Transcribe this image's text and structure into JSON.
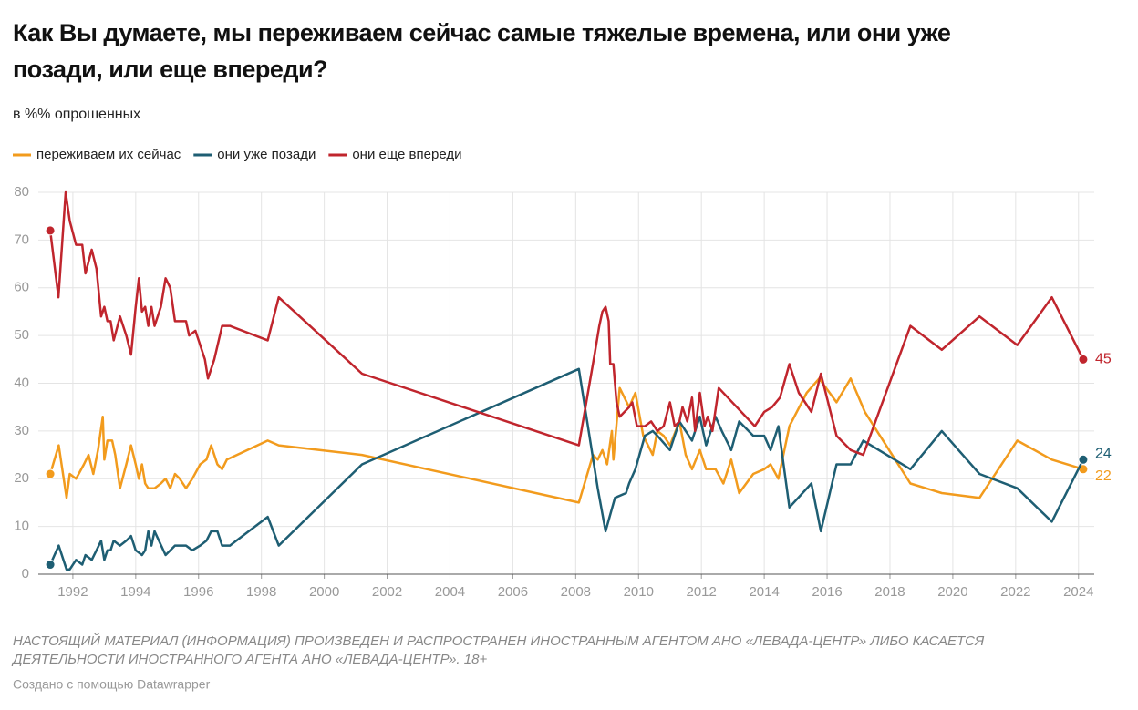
{
  "chart_data": {
    "type": "line",
    "title": "Как Вы думаете, мы переживаем сейчас самые тяжелые времена, или они уже позади, или еще впереди?",
    "subtitle": "в %% опрошенных",
    "note": "НАСТОЯЩИЙ МАТЕРИАЛ (ИНФОРМАЦИЯ) ПРОИЗВЕДЕН И РАСПРОСТРАНЕН ИНОСТРАННЫМ АГЕНТОМ АНО «ЛЕВАДА-ЦЕНТР» ЛИБО КАСАЕТСЯ ДЕЯТЕЛЬНОСТИ ИНОСТРАННОГО АГЕНТА АНО «ЛЕВАДА-ЦЕНТР». 18+",
    "credit": "Создано с помощью Datawrapper",
    "xlim": [
      1990.9,
      2024.5
    ],
    "xticks": [
      1992,
      1994,
      1996,
      1998,
      2000,
      2002,
      2004,
      2006,
      2008,
      2010,
      2012,
      2014,
      2016,
      2018,
      2020,
      2022,
      2024
    ],
    "ylim": [
      0,
      80
    ],
    "yticks": [
      0,
      10,
      20,
      30,
      40,
      50,
      60,
      70,
      80
    ],
    "grid": true,
    "series": [
      {
        "name": "переживаем их сейчас",
        "color": "#f29b1d",
        "x": [
          1991.28,
          1991.55,
          1991.8,
          1991.9,
          1992.1,
          1992.35,
          1992.5,
          1992.65,
          1992.8,
          1992.95,
          1993.0,
          1993.1,
          1993.25,
          1993.35,
          1993.5,
          1993.7,
          1993.85,
          1994.0,
          1994.1,
          1994.2,
          1994.3,
          1994.4,
          1994.6,
          1994.8,
          1994.95,
          1995.1,
          1995.25,
          1995.4,
          1995.6,
          1995.8,
          1996.05,
          1996.25,
          1996.4,
          1996.6,
          1996.75,
          1996.9,
          1998.2,
          1998.55,
          2001.2,
          2008.1,
          2008.55,
          2008.7,
          2008.85,
          2009.0,
          2009.15,
          2009.2,
          2009.4,
          2009.7,
          2009.9,
          2010.15,
          2010.45,
          2010.6,
          2010.8,
          2011.0,
          2011.3,
          2011.5,
          2011.7,
          2011.95,
          2012.15,
          2012.45,
          2012.7,
          2012.95,
          2013.2,
          2013.65,
          2014.0,
          2014.2,
          2014.45,
          2014.8,
          2015.35,
          2015.75,
          2016.3,
          2016.75,
          2017.2,
          2018.65,
          2019.65,
          2020.85,
          2022.05,
          2023.15,
          2024.15
        ],
        "values": [
          21,
          27,
          16,
          21,
          20,
          23,
          25,
          21,
          26,
          33,
          24,
          28,
          28,
          25,
          18,
          23,
          27,
          23,
          20,
          23,
          19,
          18,
          18,
          19,
          20,
          18,
          21,
          20,
          18,
          20,
          23,
          24,
          27,
          23,
          22,
          24,
          28,
          27,
          25,
          15,
          25,
          24,
          26,
          23,
          30,
          24,
          39,
          35,
          38,
          29,
          25,
          30,
          29,
          27,
          32,
          25,
          22,
          26,
          22,
          22,
          19,
          24,
          17,
          21,
          22,
          23,
          20,
          31,
          38,
          41,
          36,
          41,
          34,
          19,
          17,
          16,
          28,
          24,
          22
        ]
      },
      {
        "name": "они уже позади",
        "color": "#1e5e73",
        "x": [
          1991.28,
          1991.55,
          1991.8,
          1991.9,
          1992.1,
          1992.3,
          1992.4,
          1992.6,
          1992.75,
          1992.9,
          1993.0,
          1993.1,
          1993.2,
          1993.3,
          1993.5,
          1993.7,
          1993.85,
          1994.0,
          1994.2,
          1994.3,
          1994.4,
          1994.5,
          1994.6,
          1994.95,
          1995.25,
          1995.6,
          1995.8,
          1996.05,
          1996.25,
          1996.4,
          1996.6,
          1996.75,
          1997.0,
          1998.2,
          1998.55,
          2001.2,
          2008.1,
          2008.7,
          2008.95,
          2009.25,
          2009.6,
          2009.7,
          2009.9,
          2010.2,
          2010.45,
          2010.6,
          2011.0,
          2011.3,
          2011.5,
          2011.7,
          2011.95,
          2012.15,
          2012.45,
          2012.65,
          2012.95,
          2013.2,
          2013.65,
          2014.0,
          2014.2,
          2014.45,
          2014.8,
          2015.5,
          2015.8,
          2016.3,
          2016.75,
          2017.15,
          2018.65,
          2019.65,
          2020.85,
          2022.05,
          2023.15,
          2024.15
        ],
        "values": [
          2,
          6,
          1,
          1,
          3,
          2,
          4,
          3,
          5,
          7,
          3,
          5,
          5,
          7,
          6,
          7,
          8,
          5,
          4,
          5,
          9,
          6,
          9,
          4,
          6,
          6,
          5,
          6,
          7,
          9,
          9,
          6,
          6,
          12,
          6,
          23,
          43,
          18,
          9,
          16,
          17,
          19,
          22,
          29,
          30,
          29,
          26,
          32,
          30,
          28,
          33,
          27,
          33,
          30,
          26,
          32,
          29,
          29,
          26,
          31,
          14,
          19,
          9,
          23,
          23,
          28,
          22,
          30,
          21,
          18,
          11,
          24
        ]
      },
      {
        "name": "они еще впереди",
        "color": "#c0252d",
        "x": [
          1991.28,
          1991.54,
          1991.77,
          1991.9,
          1992.1,
          1992.3,
          1992.4,
          1992.6,
          1992.75,
          1992.9,
          1993.0,
          1993.1,
          1993.2,
          1993.3,
          1993.5,
          1993.7,
          1993.85,
          1994.0,
          1994.1,
          1994.2,
          1994.3,
          1994.4,
          1994.5,
          1994.6,
          1994.8,
          1994.95,
          1995.1,
          1995.25,
          1995.6,
          1995.7,
          1995.9,
          1996.0,
          1996.2,
          1996.3,
          1996.5,
          1996.75,
          1997.0,
          1998.2,
          1998.55,
          2001.2,
          2008.1,
          2008.6,
          2008.75,
          2008.85,
          2008.95,
          2009.05,
          2009.1,
          2009.2,
          2009.3,
          2009.4,
          2009.7,
          2009.8,
          2009.95,
          2010.2,
          2010.4,
          2010.6,
          2010.8,
          2011.0,
          2011.15,
          2011.3,
          2011.4,
          2011.55,
          2011.7,
          2011.8,
          2011.95,
          2012.1,
          2012.2,
          2012.35,
          2012.55,
          2013.7,
          2014.0,
          2014.25,
          2014.5,
          2014.8,
          2015.1,
          2015.5,
          2015.8,
          2016.3,
          2016.75,
          2017.15,
          2018.65,
          2019.65,
          2020.85,
          2022.05,
          2023.15,
          2024.15
        ],
        "values": [
          72,
          58,
          80,
          74,
          69,
          69,
          63,
          68,
          64,
          54,
          56,
          53,
          53,
          49,
          54,
          50,
          46,
          56,
          62,
          55,
          56,
          52,
          56,
          52,
          56,
          62,
          60,
          53,
          53,
          50,
          51,
          49,
          45,
          41,
          45,
          52,
          52,
          49,
          58,
          42,
          27,
          46,
          52,
          55,
          56,
          53,
          44,
          44,
          36,
          33,
          35,
          36,
          31,
          31,
          32,
          30,
          31,
          36,
          31,
          32,
          35,
          32,
          37,
          30,
          38,
          31,
          33,
          30,
          39,
          31,
          34,
          35,
          37,
          44,
          38,
          34,
          42,
          29,
          26,
          25,
          52,
          47,
          54,
          48,
          58,
          45
        ]
      }
    ]
  }
}
